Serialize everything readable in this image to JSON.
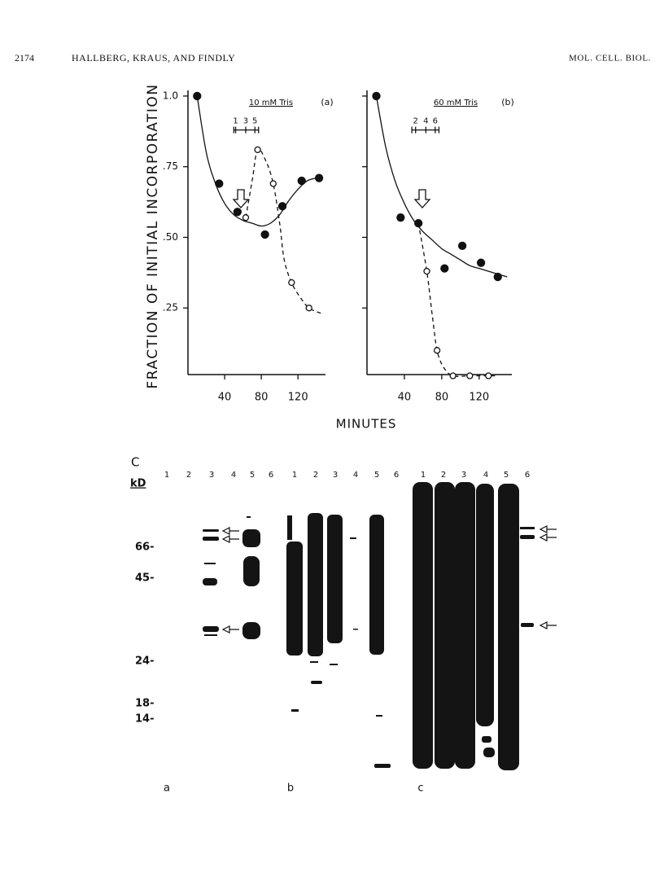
{
  "header": {
    "page": "2174",
    "authors": "HALLBERG, KRAUS, AND FINDLY",
    "journal": "MOL. CELL. BIOL."
  },
  "figure": {
    "y_label": "FRACTION OF INITIAL INCORPORATION",
    "x_label": "MINUTES"
  },
  "chart_data": [
    {
      "type": "scatter",
      "title": "10 mM Tris",
      "panel": "(a)",
      "xlim": [
        0,
        150
      ],
      "ylim": [
        0,
        1.02
      ],
      "xticks": [
        40,
        80,
        120
      ],
      "yticks": [
        {
          "value": 0.25,
          "label": ".25"
        },
        {
          "value": 0.5,
          "label": ".50"
        },
        {
          "value": 0.75,
          "label": ".75"
        },
        {
          "value": 1.0,
          "label": "1.0"
        }
      ],
      "ytick_labels": true,
      "bracket": {
        "range": [
          50,
          77
        ],
        "y": 0.88,
        "labels": [
          {
            "value": 52,
            "label": "1"
          },
          {
            "value": 63,
            "label": "3"
          },
          {
            "value": 73,
            "label": "5"
          }
        ]
      },
      "series": [
        {
          "marker": "filled",
          "color": "#111111",
          "x": [
            10,
            34,
            54,
            84,
            103,
            124,
            143
          ],
          "values": [
            1.0,
            0.69,
            0.59,
            0.51,
            0.61,
            0.7,
            0.71
          ]
        },
        {
          "marker": "open",
          "color": "#111111",
          "x": [
            63,
            76,
            93,
            113,
            132
          ],
          "values": [
            0.57,
            0.81,
            0.69,
            0.34,
            0.25
          ]
        }
      ],
      "curves": [
        {
          "style": "solid",
          "x": [
            10,
            20,
            30,
            40,
            50,
            60,
            70,
            80,
            90,
            100,
            110,
            120,
            130,
            140
          ],
          "values": [
            1.0,
            0.8,
            0.69,
            0.62,
            0.58,
            0.56,
            0.55,
            0.54,
            0.55,
            0.58,
            0.63,
            0.67,
            0.7,
            0.71
          ]
        },
        {
          "style": "dashed",
          "x": [
            63,
            70,
            76,
            85,
            93,
            100,
            105,
            113,
            122,
            132,
            146
          ],
          "values": [
            0.57,
            0.7,
            0.81,
            0.77,
            0.69,
            0.55,
            0.42,
            0.34,
            0.29,
            0.25,
            0.23
          ]
        }
      ]
    },
    {
      "type": "scatter",
      "title": "60 mM Tris",
      "panel": "(b)",
      "xlim": [
        0,
        155
      ],
      "ylim": [
        0,
        1.02
      ],
      "xticks": [
        40,
        80,
        120
      ],
      "yticks": [
        0.25,
        0.5,
        0.75,
        1.0
      ],
      "ytick_labels": false,
      "bracket": {
        "range": [
          48,
          77
        ],
        "y": 0.88,
        "labels": [
          {
            "value": 52,
            "label": "2"
          },
          {
            "value": 63,
            "label": "4"
          },
          {
            "value": 73,
            "label": "6"
          }
        ]
      },
      "series": [
        {
          "marker": "filled",
          "color": "#111111",
          "x": [
            10,
            36,
            55,
            83,
            102,
            122,
            140
          ],
          "values": [
            1.0,
            0.57,
            0.55,
            0.39,
            0.47,
            0.41,
            0.36
          ]
        },
        {
          "marker": "open",
          "color": "#111111",
          "x": [
            64,
            75,
            92,
            110,
            130
          ],
          "values": [
            0.38,
            0.1,
            0.01,
            0.01,
            0.01
          ]
        }
      ],
      "curves": [
        {
          "style": "solid",
          "x": [
            10,
            20,
            30,
            40,
            50,
            60,
            70,
            80,
            90,
            100,
            110,
            120,
            130,
            140,
            150
          ],
          "values": [
            1.0,
            0.82,
            0.7,
            0.62,
            0.56,
            0.52,
            0.49,
            0.46,
            0.44,
            0.42,
            0.4,
            0.39,
            0.38,
            0.37,
            0.36
          ]
        },
        {
          "style": "dashed",
          "x": [
            55,
            64,
            70,
            75,
            82,
            92,
            110,
            130,
            138
          ],
          "values": [
            0.55,
            0.38,
            0.22,
            0.1,
            0.04,
            0.01,
            0.01,
            0.01,
            0.01
          ]
        }
      ]
    }
  ],
  "gel": {
    "panel_label": "C",
    "unit": "kD",
    "markers": [
      "66-",
      "45-",
      "24-",
      "18-",
      "14-"
    ],
    "lanes": [
      [
        "1",
        "2",
        "3",
        "4",
        "5",
        "6"
      ],
      [
        "1",
        "2",
        "3",
        "4",
        "5",
        "6"
      ],
      [
        "1",
        "2",
        "3",
        "4",
        "5",
        "6"
      ]
    ],
    "panels": [
      "a",
      "b",
      "c"
    ]
  }
}
